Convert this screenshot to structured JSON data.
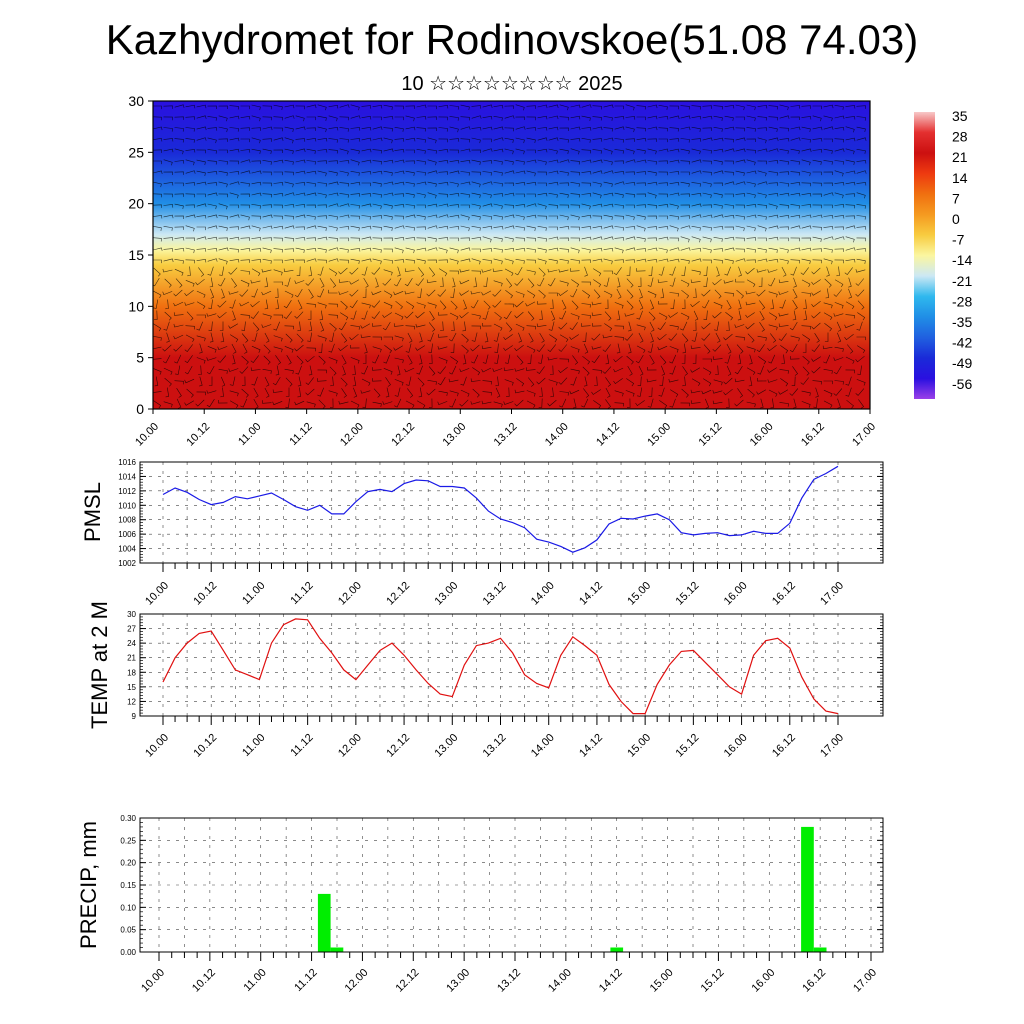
{
  "title": "Kazhydromet for Rodinovskoe(51.08 74.03)",
  "subtitle": "10 ☆☆☆☆☆☆☆☆ 2025",
  "time_labels": [
    "10.00",
    "10.12",
    "11.00",
    "11.12",
    "12.00",
    "12.12",
    "13.00",
    "13.12",
    "14.00",
    "14.12",
    "15.00",
    "15.12",
    "16.00",
    "16.12",
    "17.00"
  ],
  "colors": {
    "pmsl_line": "#1a1ae6",
    "temp_line": "#e01010",
    "precip_bar": "#00ee00",
    "grid": "#444444"
  },
  "chart_data": [
    {
      "type": "heatmap",
      "name": "cross-section",
      "ylim": [
        0,
        30
      ],
      "yticks": [
        0,
        5,
        10,
        15,
        20,
        25,
        30
      ],
      "colorbar": {
        "labels": [
          "35",
          "28",
          "21",
          "14",
          "7",
          "0",
          "-7",
          "-14",
          "-21",
          "-28",
          "-35",
          "-42",
          "-49",
          "-56"
        ],
        "stops": [
          "#f8c8c8",
          "#e43030",
          "#cc1010",
          "#ee3a10",
          "#f07010",
          "#f59a20",
          "#f8cc40",
          "#fbf6a0",
          "#cce8f4",
          "#2fb8ee",
          "#208ee6",
          "#2060e0",
          "#1a2ad8",
          "#2a10e0",
          "#9a40e8"
        ]
      },
      "temperature_profile": {
        "heights": [
          0,
          5,
          10,
          14,
          15.5,
          17,
          20,
          25,
          30
        ],
        "values": [
          28,
          24,
          10,
          -2,
          -9,
          -15,
          -30,
          -45,
          -55
        ]
      }
    },
    {
      "type": "line",
      "name": "pmsl",
      "ylabel": "PMSL",
      "ylim": [
        1002,
        1016
      ],
      "yticks": [
        1002,
        1004,
        1006,
        1008,
        1010,
        1012,
        1014,
        1016
      ],
      "series": [
        {
          "x": [
            0,
            3,
            6,
            9,
            12,
            15,
            18,
            21,
            24,
            27,
            30,
            33,
            36,
            39,
            42,
            45,
            48,
            51,
            54,
            57,
            60,
            63,
            66,
            69,
            72,
            75,
            78,
            81,
            84,
            87,
            90,
            93,
            96,
            99,
            102,
            105,
            108,
            111,
            114,
            117,
            120,
            123,
            126,
            129,
            132,
            135,
            138,
            141,
            144,
            147,
            150,
            153,
            156,
            159,
            162,
            165,
            168
          ],
          "values": [
            1011.5,
            1012.4,
            1011.8,
            1010.8,
            1010.1,
            1010.4,
            1011.2,
            1010.9,
            1011.3,
            1011.7,
            1010.8,
            1009.8,
            1009.3,
            1010.0,
            1008.8,
            1008.8,
            1010.5,
            1011.9,
            1012.2,
            1011.9,
            1013.0,
            1013.5,
            1013.4,
            1012.6,
            1012.6,
            1012.4,
            1011.0,
            1009.2,
            1008.1,
            1007.6,
            1006.9,
            1005.3,
            1004.9,
            1004.3,
            1003.5,
            1004.1,
            1005.2,
            1007.4,
            1008.2,
            1008.1,
            1008.5,
            1008.8,
            1008.0,
            1006.2,
            1005.9,
            1006.1,
            1006.2,
            1005.8,
            1005.9,
            1006.4,
            1006.1,
            1006.1,
            1007.5,
            1011.0,
            1013.6,
            1014.4,
            1015.4
          ]
        }
      ]
    },
    {
      "type": "line",
      "name": "temp2m",
      "ylabel": "TEMP at 2 M",
      "ylim": [
        9,
        30
      ],
      "yticks": [
        9,
        12,
        15,
        18,
        21,
        24,
        27,
        30
      ],
      "series": [
        {
          "x": [
            0,
            3,
            6,
            9,
            12,
            15,
            18,
            21,
            24,
            27,
            30,
            33,
            36,
            39,
            42,
            45,
            48,
            51,
            54,
            57,
            60,
            63,
            66,
            69,
            72,
            75,
            78,
            81,
            84,
            87,
            90,
            93,
            96,
            99,
            102,
            105,
            108,
            111,
            114,
            117,
            120,
            123,
            126,
            129,
            132,
            135,
            138,
            141,
            144,
            147,
            150,
            153,
            156,
            159,
            162,
            165,
            168
          ],
          "values": [
            16,
            21,
            24,
            26,
            26.5,
            22.5,
            18.5,
            17.5,
            16.5,
            24,
            27.8,
            29,
            28.8,
            25,
            22,
            18.5,
            16.5,
            19.5,
            22.5,
            24,
            21.5,
            18.5,
            15.7,
            13.5,
            13,
            19.5,
            23.5,
            24,
            25,
            22,
            17.5,
            15.7,
            14.8,
            21.5,
            25.3,
            23.5,
            21.5,
            15.5,
            12,
            9.5,
            9.5,
            15.5,
            19.5,
            22.3,
            22.5,
            20,
            17.5,
            15,
            13.5,
            21.5,
            24.5,
            25,
            23,
            17,
            12.5,
            10,
            9.5
          ]
        }
      ]
    },
    {
      "type": "bar",
      "name": "precip",
      "ylabel": "PRECIP, mm",
      "ylim": [
        0,
        0.3
      ],
      "yticks": [
        "0.00",
        "0.05",
        "0.10",
        "0.15",
        "0.20",
        "0.25",
        "0.30"
      ],
      "series": [
        {
          "x": [
            39,
            42,
            108,
            153,
            156
          ],
          "values": [
            0.13,
            0.01,
            0.01,
            0.28,
            0.01
          ]
        }
      ]
    }
  ]
}
